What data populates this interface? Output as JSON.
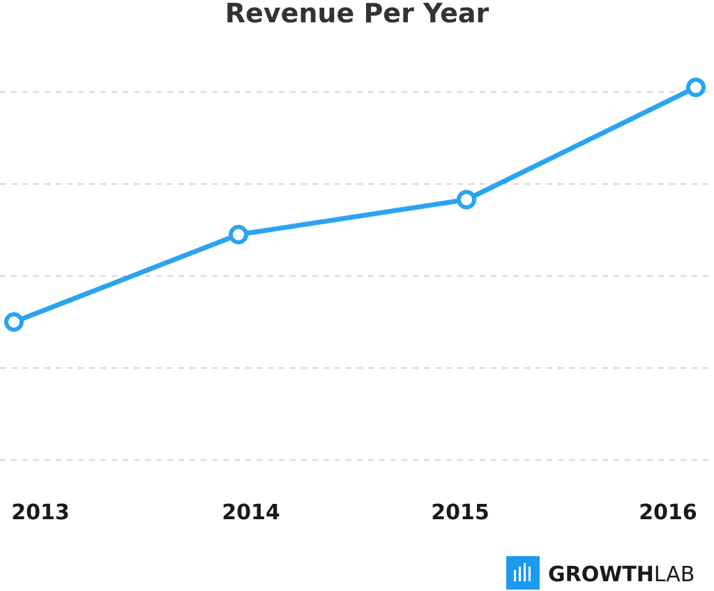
{
  "chart_data": {
    "type": "line",
    "title": "Revenue Per Year",
    "xlabel": "",
    "ylabel": "",
    "categories": [
      "2013",
      "2014",
      "2015",
      "2016"
    ],
    "series": [
      {
        "values": [
          1.5,
          2.45,
          2.83,
          4.05
        ]
      }
    ],
    "ylim": [
      0,
      5
    ],
    "grid": true,
    "line_color": "#2aa3f0"
  },
  "logo": {
    "brand_bold": "GROWTH",
    "brand_light": "LAB",
    "color": "#1b9bf0"
  }
}
